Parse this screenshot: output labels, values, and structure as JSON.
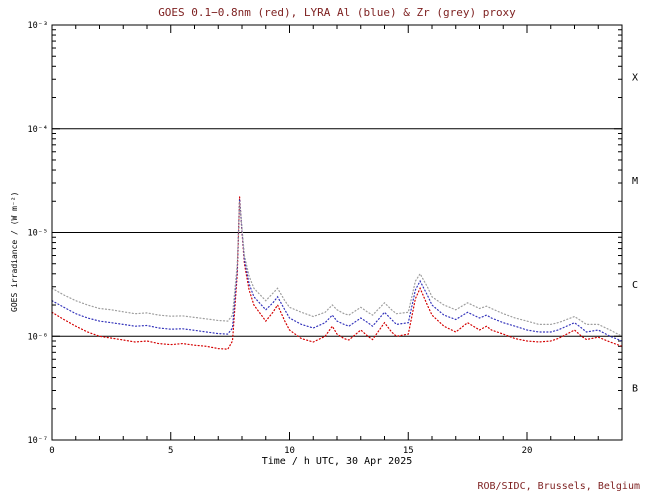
{
  "chart_data": {
    "type": "line",
    "title": "GOES 0.1−0.8nm (red), LYRA Al (blue) & Zr (grey) proxy",
    "xlabel": "Time / h UTC, 30 Apr 2025",
    "ylabel": "GOES irradiance / (W m⁻²)",
    "credit": "ROB/SIDC, Brussels, Belgium",
    "xlim": [
      0,
      24
    ],
    "ylog_range": [
      -7,
      -3
    ],
    "x_major_ticks": [
      0,
      5,
      10,
      15,
      20
    ],
    "x_minor_step": 1,
    "y_tick_labels": [
      "10⁻³",
      "10⁻⁴",
      "10⁻⁵",
      "10⁻⁶",
      "10⁻⁷"
    ],
    "y_tick_exponents": [
      -3,
      -4,
      -5,
      -6,
      -7
    ],
    "hlines": [
      0.0001,
      1e-05,
      1e-06
    ],
    "flare_classes": [
      {
        "label": "X",
        "y": 0.000316
      },
      {
        "label": "M",
        "y": 3.16e-05
      },
      {
        "label": "C",
        "y": 3.16e-06
      },
      {
        "label": "B",
        "y": 3.16e-07
      }
    ],
    "legend_position": "in-title",
    "grid": false,
    "x": [
      0,
      0.5,
      1,
      1.5,
      2,
      2.5,
      3,
      3.5,
      4,
      4.5,
      5,
      5.5,
      6,
      6.5,
      7,
      7.4,
      7.6,
      7.8,
      7.9,
      8.0,
      8.1,
      8.3,
      8.5,
      9,
      9.3,
      9.5,
      9.8,
      10,
      10.5,
      11,
      11.5,
      11.8,
      12,
      12.3,
      12.5,
      13,
      13.3,
      13.5,
      14,
      14.3,
      14.5,
      15,
      15.3,
      15.5,
      15.8,
      16,
      16.5,
      17,
      17.5,
      18,
      18.3,
      18.5,
      19,
      19.5,
      20,
      20.5,
      21,
      21.3,
      21.5,
      22,
      22.3,
      22.5,
      23,
      23.5,
      24
    ],
    "series": [
      {
        "name": "GOES 0.1−0.8nm",
        "color": "#d40000",
        "values": [
          1.7e-06,
          1.45e-06,
          1.25e-06,
          1.1e-06,
          1e-06,
          9.6e-07,
          9.2e-07,
          8.8e-07,
          9e-07,
          8.5e-07,
          8.3e-07,
          8.5e-07,
          8.2e-07,
          8e-07,
          7.6e-07,
          7.5e-07,
          9e-07,
          4e-06,
          2.2e-05,
          1e-05,
          5e-06,
          2.8e-06,
          2e-06,
          1.4e-06,
          1.7e-06,
          2e-06,
          1.4e-06,
          1.15e-06,
          9.5e-07,
          8.8e-07,
          1e-06,
          1.25e-06,
          1.05e-06,
          9.5e-07,
          9.2e-07,
          1.15e-06,
          1e-06,
          9.3e-07,
          1.35e-06,
          1.1e-06,
          1e-06,
          1.05e-06,
          2.3e-06,
          2.9e-06,
          2e-06,
          1.6e-06,
          1.25e-06,
          1.1e-06,
          1.35e-06,
          1.15e-06,
          1.25e-06,
          1.15e-06,
          1.05e-06,
          9.5e-07,
          9e-07,
          8.8e-07,
          9e-07,
          9.5e-07,
          1e-06,
          1.15e-06,
          1e-06,
          9.3e-07,
          9.8e-07,
          8.8e-07,
          8e-07
        ]
      },
      {
        "name": "LYRA Al proxy",
        "color": "#3333bb",
        "values": [
          2.2e-06,
          1.9e-06,
          1.65e-06,
          1.5e-06,
          1.4e-06,
          1.35e-06,
          1.3e-06,
          1.25e-06,
          1.27e-06,
          1.2e-06,
          1.17e-06,
          1.18e-06,
          1.14e-06,
          1.1e-06,
          1.06e-06,
          1.05e-06,
          1.2e-06,
          4.5e-06,
          2.1e-05,
          1.05e-05,
          5.5e-06,
          3.2e-06,
          2.4e-06,
          1.8e-06,
          2.1e-06,
          2.4e-06,
          1.8e-06,
          1.5e-06,
          1.3e-06,
          1.2e-06,
          1.35e-06,
          1.6e-06,
          1.4e-06,
          1.3e-06,
          1.25e-06,
          1.5e-06,
          1.35e-06,
          1.25e-06,
          1.7e-06,
          1.45e-06,
          1.3e-06,
          1.35e-06,
          2.8e-06,
          3.4e-06,
          2.5e-06,
          2e-06,
          1.6e-06,
          1.45e-06,
          1.7e-06,
          1.5e-06,
          1.6e-06,
          1.5e-06,
          1.35e-06,
          1.25e-06,
          1.15e-06,
          1.1e-06,
          1.1e-06,
          1.15e-06,
          1.2e-06,
          1.35e-06,
          1.2e-06,
          1.1e-06,
          1.15e-06,
          1e-06,
          9e-07
        ]
      },
      {
        "name": "LYRA Zr proxy",
        "color": "#9e9e9e",
        "values": [
          2.9e-06,
          2.5e-06,
          2.2e-06,
          2e-06,
          1.85e-06,
          1.8e-06,
          1.72e-06,
          1.65e-06,
          1.68e-06,
          1.6e-06,
          1.56e-06,
          1.57e-06,
          1.52e-06,
          1.47e-06,
          1.42e-06,
          1.4e-06,
          1.6e-06,
          5e-06,
          2e-05,
          1.1e-05,
          6e-06,
          3.8e-06,
          2.9e-06,
          2.2e-06,
          2.6e-06,
          2.9e-06,
          2.2e-06,
          1.9e-06,
          1.7e-06,
          1.55e-06,
          1.7e-06,
          2e-06,
          1.8e-06,
          1.65e-06,
          1.6e-06,
          1.9e-06,
          1.7e-06,
          1.6e-06,
          2.1e-06,
          1.8e-06,
          1.65e-06,
          1.7e-06,
          3.4e-06,
          4e-06,
          3e-06,
          2.4e-06,
          2e-06,
          1.8e-06,
          2.1e-06,
          1.85e-06,
          1.95e-06,
          1.85e-06,
          1.65e-06,
          1.5e-06,
          1.4e-06,
          1.3e-06,
          1.3e-06,
          1.35e-06,
          1.4e-06,
          1.55e-06,
          1.4e-06,
          1.3e-06,
          1.3e-06,
          1.15e-06,
          1e-06
        ]
      }
    ],
    "colors": {
      "axis": "#000000",
      "title_text": "#7d1f1f",
      "credit_text": "#7d1f1f",
      "background": "#ffffff"
    }
  }
}
